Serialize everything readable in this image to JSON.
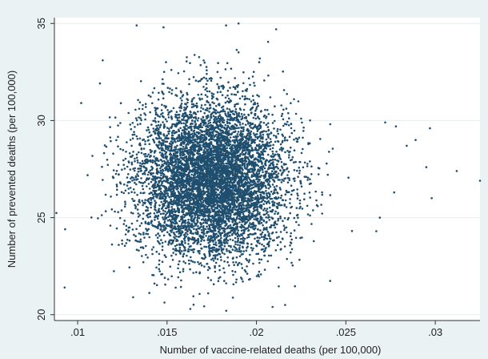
{
  "chart_data": {
    "type": "scatter",
    "title": "",
    "xlabel": "Number of vaccine-related deaths (per 100,000)",
    "ylabel": "Number of prevented deaths (per 100,000)",
    "xlim": [
      0.0087,
      0.0325
    ],
    "ylim": [
      19.7,
      35.3
    ],
    "xticks": [
      0.01,
      0.015,
      0.02,
      0.025,
      0.03
    ],
    "xtick_labels": [
      ".01",
      ".015",
      ".02",
      ".025",
      ".03"
    ],
    "yticks": [
      20,
      25,
      30,
      35
    ],
    "ytick_labels": [
      "20",
      "25",
      "30",
      "35"
    ],
    "grid": true,
    "legend": "none",
    "colors": {
      "points": "#1f4e6e",
      "plot_background": "#ffffff",
      "outer_background": "#eaf2f3",
      "grid": "#e6eef0"
    },
    "series": [
      {
        "distribution": "bivariate-normal",
        "x_mean": 0.0175,
        "x_sd": 0.0021,
        "y_mean": 27.0,
        "y_sd": 2.0,
        "points_shown": "dense cloud",
        "notable_points": [
          [
            0.0093,
            24.4
          ],
          [
            0.0102,
            30.9
          ],
          [
            0.0114,
            33.1
          ],
          [
            0.0133,
            34.9
          ],
          [
            0.0148,
            34.8
          ],
          [
            0.0183,
            34.9
          ],
          [
            0.019,
            35.0
          ],
          [
            0.0211,
            34.7
          ],
          [
            0.0163,
            20.3
          ],
          [
            0.0209,
            20.4
          ],
          [
            0.0216,
            20.5
          ],
          [
            0.0131,
            20.9
          ],
          [
            0.0278,
            29.7
          ],
          [
            0.0289,
            29.0
          ],
          [
            0.0284,
            28.7
          ],
          [
            0.0297,
            29.6
          ],
          [
            0.0298,
            26.0
          ],
          [
            0.0295,
            27.6
          ],
          [
            0.0312,
            27.4
          ],
          [
            0.0325,
            26.9
          ],
          [
            0.0269,
            25.0
          ],
          [
            0.0277,
            26.3
          ],
          [
            0.0272,
            29.9
          ],
          [
            0.0267,
            24.3
          ]
        ]
      }
    ]
  }
}
